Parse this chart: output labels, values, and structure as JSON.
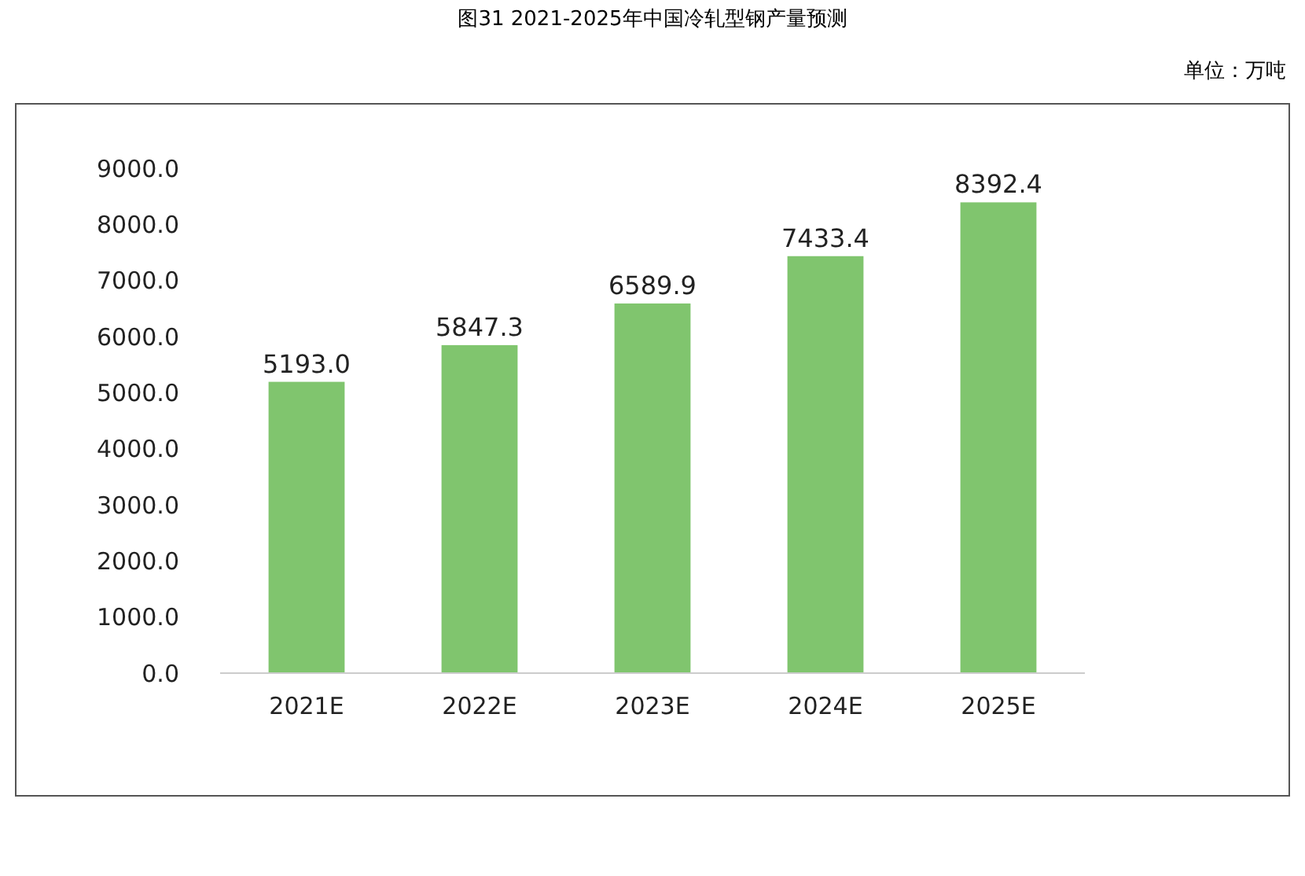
{
  "chart_data": {
    "type": "bar",
    "title": "图31 2021-2025年中国冷轧型钢产量预测",
    "annotations": [
      "单位：万吨"
    ],
    "categories": [
      "2021E",
      "2022E",
      "2023E",
      "2024E",
      "2025E"
    ],
    "values": [
      5193.0,
      5847.3,
      6589.9,
      7433.4,
      8392.4
    ],
    "value_labels": [
      "5193.0",
      "5847.3",
      "6589.9",
      "7433.4",
      "8392.4"
    ],
    "color": "#80c56e",
    "ylim": [
      0,
      9000
    ],
    "yticks": [
      {
        "value": 0,
        "label": "0.0"
      },
      {
        "value": 1000,
        "label": "1000.0"
      },
      {
        "value": 2000,
        "label": "2000.0"
      },
      {
        "value": 3000,
        "label": "3000.0"
      },
      {
        "value": 4000,
        "label": "4000.0"
      },
      {
        "value": 5000,
        "label": "5000.0"
      },
      {
        "value": 6000,
        "label": "6000.0"
      },
      {
        "value": 7000,
        "label": "7000.0"
      },
      {
        "value": 8000,
        "label": "8000.0"
      },
      {
        "value": 9000,
        "label": "9000.0"
      }
    ],
    "grid": false
  }
}
